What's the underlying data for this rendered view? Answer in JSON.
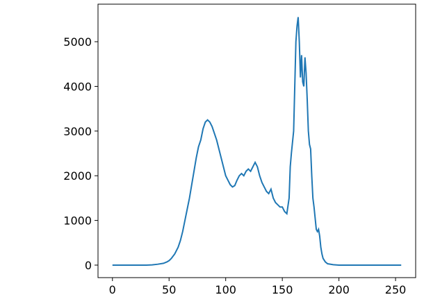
{
  "chart_data": {
    "type": "line",
    "x": [
      0,
      10,
      20,
      30,
      35,
      40,
      45,
      48,
      50,
      52,
      55,
      58,
      60,
      62,
      64,
      66,
      68,
      70,
      72,
      74,
      76,
      78,
      80,
      82,
      84,
      86,
      88,
      90,
      92,
      94,
      96,
      98,
      100,
      102,
      104,
      106,
      108,
      110,
      112,
      114,
      116,
      118,
      120,
      122,
      124,
      126,
      128,
      130,
      132,
      134,
      136,
      138,
      140,
      142,
      144,
      146,
      148,
      150,
      152,
      154,
      156,
      157,
      158,
      160,
      161,
      162,
      163,
      164,
      165,
      166,
      167,
      168,
      169,
      170,
      171,
      172,
      173,
      174,
      175,
      176,
      177,
      178,
      180,
      181,
      182,
      183,
      184,
      185,
      186,
      188,
      190,
      195,
      200,
      220,
      255
    ],
    "series": [
      {
        "color": "#1f77b4",
        "values": [
          0,
          0,
          0,
          0,
          5,
          20,
          40,
          70,
          100,
          150,
          250,
          400,
          550,
          750,
          1000,
          1250,
          1500,
          1800,
          2100,
          2400,
          2650,
          2800,
          3050,
          3200,
          3250,
          3200,
          3100,
          2950,
          2800,
          2600,
          2400,
          2200,
          2000,
          1900,
          1800,
          1750,
          1780,
          1900,
          2000,
          2050,
          2000,
          2100,
          2150,
          2100,
          2200,
          2300,
          2200,
          2000,
          1850,
          1750,
          1650,
          1600,
          1700,
          1500,
          1400,
          1350,
          1300,
          1300,
          1200,
          1150,
          1500,
          2200,
          2500,
          3000,
          4000,
          5000,
          5350,
          5550,
          5000,
          4200,
          4700,
          4100,
          4000,
          4650,
          4300,
          3700,
          3000,
          2700,
          2600,
          2000,
          1500,
          1300,
          800,
          750,
          800,
          650,
          400,
          250,
          150,
          70,
          30,
          10,
          0,
          0,
          0
        ]
      }
    ],
    "xlim": [
      -12.75,
      267.75
    ],
    "ylim": [
      -280,
      5840
    ],
    "xticks": [
      0,
      50,
      100,
      150,
      200,
      250
    ],
    "yticks": [
      0,
      1000,
      2000,
      3000,
      4000,
      5000
    ]
  }
}
